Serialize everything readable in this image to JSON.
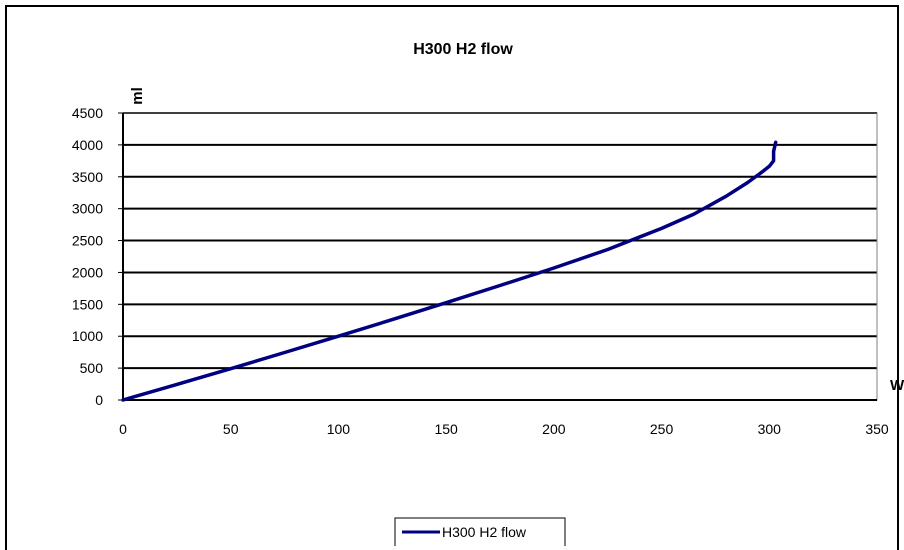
{
  "chart_data": {
    "type": "line",
    "title": "H300 H2 flow",
    "xlabel": "W",
    "ylabel": "ml",
    "xlim": [
      0,
      350
    ],
    "ylim": [
      0,
      4500
    ],
    "xticks": [
      0,
      50,
      100,
      150,
      200,
      250,
      300,
      350
    ],
    "yticks": [
      0,
      500,
      1000,
      1500,
      2000,
      2500,
      3000,
      3500,
      4000,
      4500
    ],
    "grid": "horizontal",
    "legend_position": "bottom",
    "colors": {
      "series": "#000080",
      "grid": "#000000",
      "plot_border": "#808080"
    },
    "series": [
      {
        "name": "H300 H2 flow",
        "x": [
          0,
          25,
          50,
          75,
          100,
          125,
          150,
          175,
          200,
          225,
          250,
          265,
          280,
          290,
          296,
          300,
          302,
          302,
          303
        ],
        "y": [
          0,
          245,
          490,
          745,
          1000,
          1260,
          1525,
          1795,
          2070,
          2360,
          2690,
          2915,
          3195,
          3410,
          3560,
          3665,
          3750,
          3900,
          4040
        ]
      }
    ]
  }
}
